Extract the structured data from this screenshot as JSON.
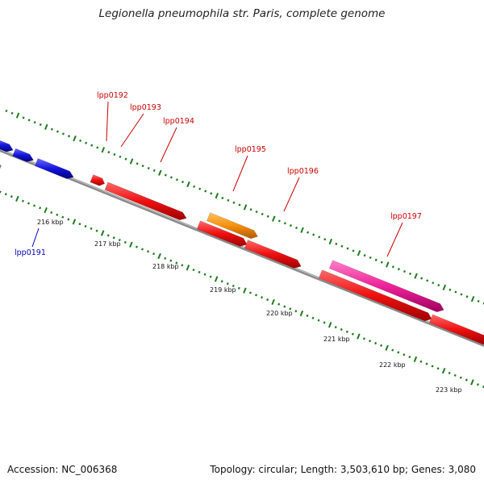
{
  "title": "Legionella pneumophila str. Paris, complete genome",
  "footer": {
    "accession": "Accession: NC_006368",
    "summary": "Topology: circular; Length: 3,503,610 bp; Genes: 3,080"
  },
  "colors": {
    "backbone": "#8a8a8a",
    "tick": "#1e7a1e",
    "gene_red": "#ee1111",
    "gene_blue": "#1515dd",
    "gene_orange": "#f5900f",
    "gene_pink": "#ee2299",
    "gene_gray": "#777777",
    "label_red": "#cc0000",
    "label_blue": "#0000bb"
  },
  "ticks": [
    {
      "label": "216 kbp"
    },
    {
      "label": "217 kbp"
    },
    {
      "label": "218 kbp"
    },
    {
      "label": "219 kbp"
    },
    {
      "label": "220 kbp"
    },
    {
      "label": "221 kbp"
    },
    {
      "label": "222 kbp"
    },
    {
      "label": "223 kbp"
    }
  ],
  "genes": [
    {
      "label": "",
      "color": "gene_gray",
      "strand": "minus"
    },
    {
      "label": "",
      "color": "gene_blue",
      "strand": "plus"
    },
    {
      "label": "",
      "color": "gene_blue",
      "strand": "plus"
    },
    {
      "label": "lpp0191",
      "color": "gene_blue",
      "strand": "plus"
    },
    {
      "label": "lpp0192",
      "color": "gene_red",
      "strand": "plus"
    },
    {
      "label": "lpp0193",
      "color": "gene_red",
      "strand": "plus"
    },
    {
      "label": "lpp0194",
      "color": "gene_red",
      "strand": "plus"
    },
    {
      "label": "lpp0195",
      "color": "gene_orange",
      "strand": "plus"
    },
    {
      "label": "lpp0196",
      "color": "gene_red",
      "strand": "plus"
    },
    {
      "label": "",
      "color": "gene_red",
      "strand": "plus"
    },
    {
      "label": "lpp0197",
      "color": "gene_pink",
      "strand": "plus"
    },
    {
      "label": "",
      "color": "gene_red",
      "strand": "plus"
    },
    {
      "label": "",
      "color": "gene_red",
      "strand": "plus"
    }
  ]
}
